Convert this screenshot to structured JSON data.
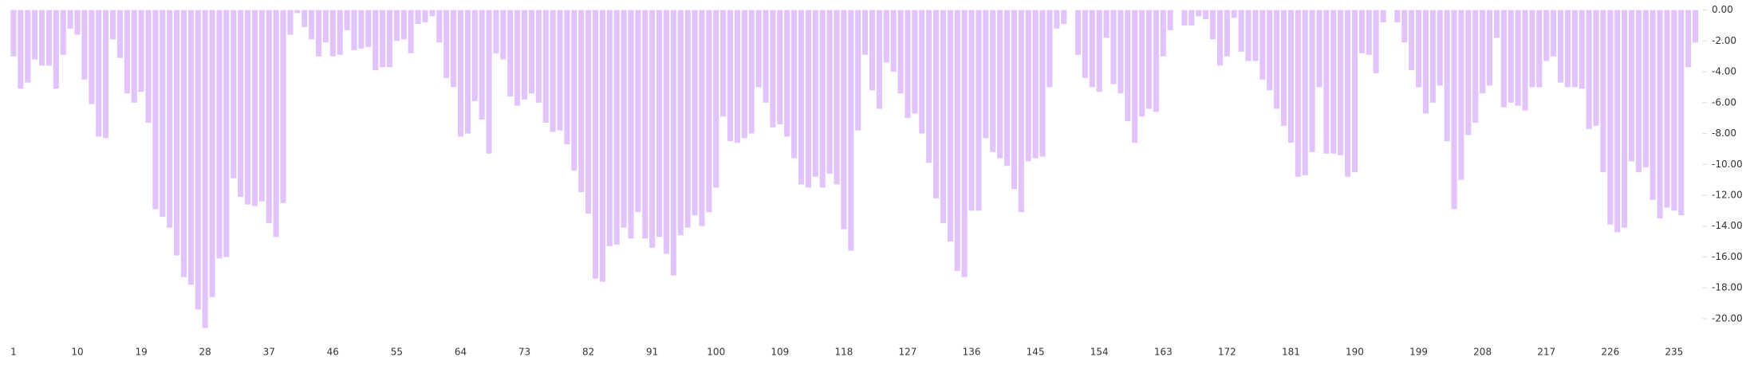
{
  "chart_data": {
    "type": "bar",
    "color": "#e2c4fc",
    "categories": [
      1,
      null,
      null,
      null,
      null,
      null,
      null,
      null,
      null,
      10,
      null,
      null,
      null,
      null,
      null,
      null,
      null,
      null,
      19,
      null,
      null,
      null,
      null,
      null,
      null,
      null,
      null,
      28,
      null,
      null,
      null,
      null,
      null,
      null,
      null,
      null,
      37,
      null,
      null,
      null,
      null,
      null,
      null,
      null,
      null,
      46,
      null,
      null,
      null,
      null,
      null,
      null,
      null,
      null,
      55,
      null,
      null,
      null,
      null,
      null,
      null,
      null,
      null,
      64,
      null,
      null,
      null,
      null,
      null,
      null,
      null,
      null,
      73,
      null,
      null,
      null,
      null,
      null,
      null,
      null,
      null,
      82,
      null,
      null,
      null,
      null,
      null,
      null,
      null,
      null,
      91,
      null,
      null,
      null,
      null,
      null,
      null,
      null,
      null,
      100,
      null,
      null,
      null,
      null,
      null,
      null,
      null,
      null,
      109,
      null,
      null,
      null,
      null,
      null,
      null,
      null,
      null,
      118,
      null,
      null,
      null,
      null,
      null,
      null,
      null,
      null,
      127,
      null,
      null,
      null,
      null,
      null,
      null,
      null,
      null,
      136,
      null,
      null,
      null,
      null,
      null,
      null,
      null,
      null,
      145,
      null,
      null,
      null,
      null,
      null,
      null,
      null,
      null,
      154,
      null,
      null,
      null,
      null,
      null,
      null,
      null,
      null,
      163,
      null,
      null,
      null,
      null,
      null,
      null,
      null,
      null,
      172,
      null,
      null,
      null,
      null,
      null,
      null,
      null,
      null,
      181,
      null,
      null,
      null,
      null,
      null,
      null,
      null,
      null,
      190,
      null,
      null,
      null,
      null,
      null,
      null,
      null,
      null,
      199,
      null,
      null,
      null,
      null,
      null,
      null,
      null,
      null,
      208,
      null,
      null,
      null,
      null,
      null,
      null,
      null,
      null,
      217,
      null,
      null,
      null,
      null,
      null,
      null,
      null,
      null,
      226,
      null,
      null,
      null,
      null,
      null,
      null,
      null,
      null,
      235,
      null,
      null,
      null
    ],
    "values": [
      -3.0,
      -5.1,
      -4.7,
      -3.2,
      -3.6,
      -3.6,
      -5.1,
      -2.9,
      -1.2,
      -1.6,
      -4.5,
      -6.1,
      -8.2,
      -8.3,
      -1.9,
      -3.1,
      -5.4,
      -6.0,
      -5.3,
      -7.3,
      -12.9,
      -13.4,
      -14.1,
      -15.9,
      -17.3,
      -17.8,
      -19.4,
      -20.6,
      -18.6,
      -16.1,
      -16.0,
      -10.9,
      -12.1,
      -12.6,
      -12.7,
      -12.4,
      -13.8,
      -14.7,
      -12.5,
      -1.6,
      -0.2,
      -1.1,
      -1.9,
      -3.0,
      -2.1,
      -3.0,
      -2.9,
      -1.3,
      -2.6,
      -2.5,
      -2.4,
      -3.9,
      -3.7,
      -3.7,
      -2.0,
      -1.9,
      -2.8,
      -0.9,
      -0.8,
      -0.4,
      -2.1,
      -4.4,
      -5.0,
      -8.2,
      -8.0,
      -5.9,
      -7.1,
      -9.3,
      -2.8,
      -3.2,
      -5.6,
      -6.2,
      -5.8,
      -5.4,
      -6.0,
      -7.3,
      -7.9,
      -7.8,
      -8.7,
      -10.4,
      -11.8,
      -13.2,
      -17.4,
      -17.6,
      -15.3,
      -15.2,
      -14.1,
      -14.8,
      -13.1,
      -14.8,
      -15.4,
      -14.7,
      -15.8,
      -17.2,
      -14.6,
      -14.1,
      -13.3,
      -14.0,
      -13.1,
      -11.5,
      -6.9,
      -8.5,
      -8.6,
      -8.3,
      -8.0,
      -5.0,
      -6.0,
      -7.6,
      -7.4,
      -8.2,
      -9.6,
      -11.3,
      -11.5,
      -10.8,
      -11.5,
      -10.6,
      -11.3,
      -14.2,
      -15.6,
      -7.8,
      -2.9,
      -5.2,
      -6.4,
      -3.4,
      -4.0,
      -5.4,
      -7.0,
      -6.7,
      -8.0,
      -9.9,
      -12.2,
      -13.8,
      -15.0,
      -16.9,
      -17.3,
      -13.0,
      -13.0,
      -8.3,
      -9.2,
      -9.6,
      -10.1,
      -11.6,
      -13.1,
      -9.8,
      -9.6,
      -9.5,
      -5.0,
      -1.2,
      -0.9,
      0,
      -2.9,
      -4.4,
      -5.0,
      -5.3,
      -1.8,
      -4.8,
      -5.4,
      -7.2,
      -8.6,
      -6.9,
      -6.4,
      -6.6,
      -3.0,
      -1.3,
      0,
      -1.0,
      -1.0,
      -0.4,
      -0.6,
      -1.9,
      -3.6,
      -3.0,
      -0.5,
      -2.7,
      -3.3,
      -3.3,
      -4.5,
      -5.2,
      -6.4,
      -7.5,
      -8.6,
      -10.8,
      -10.7,
      -9.2,
      -5.0,
      -9.3,
      -9.3,
      -9.4,
      -10.8,
      -10.5,
      -2.8,
      -2.9,
      -4.1,
      -0.8,
      0,
      -0.8,
      -2.1,
      -3.9,
      -5.0,
      -6.7,
      -6.0,
      -4.9,
      -8.5,
      -12.9,
      -11.0,
      -8.1,
      -7.3,
      -5.4,
      -4.9,
      -1.8,
      -6.3,
      -6.0,
      -6.2,
      -6.5,
      -5.0,
      -5.0,
      -3.3,
      -3.0,
      -4.7,
      -5.0,
      -5.0,
      -5.1,
      -7.7,
      -7.5,
      -10.5,
      -13.9,
      -14.4,
      -14.1,
      -9.8,
      -10.5,
      -10.2,
      -12.3,
      -13.5,
      -12.8,
      -13.0,
      -13.3,
      -3.7,
      -2.1
    ],
    "ylim": [
      -21.5,
      0
    ],
    "yticks": [
      {
        "value": 0,
        "label": "0.00"
      },
      {
        "value": -2,
        "label": "-2.00"
      },
      {
        "value": -4,
        "label": "-4.00"
      },
      {
        "value": -6,
        "label": "-6.00"
      },
      {
        "value": -8,
        "label": "-8.00"
      },
      {
        "value": -10,
        "label": "-10.00"
      },
      {
        "value": -12,
        "label": "-12.00"
      },
      {
        "value": -14,
        "label": "-14.00"
      },
      {
        "value": -16,
        "label": "-16.00"
      },
      {
        "value": -18,
        "label": "-18.00"
      },
      {
        "value": -20,
        "label": "-20.00"
      }
    ],
    "grid": false
  }
}
